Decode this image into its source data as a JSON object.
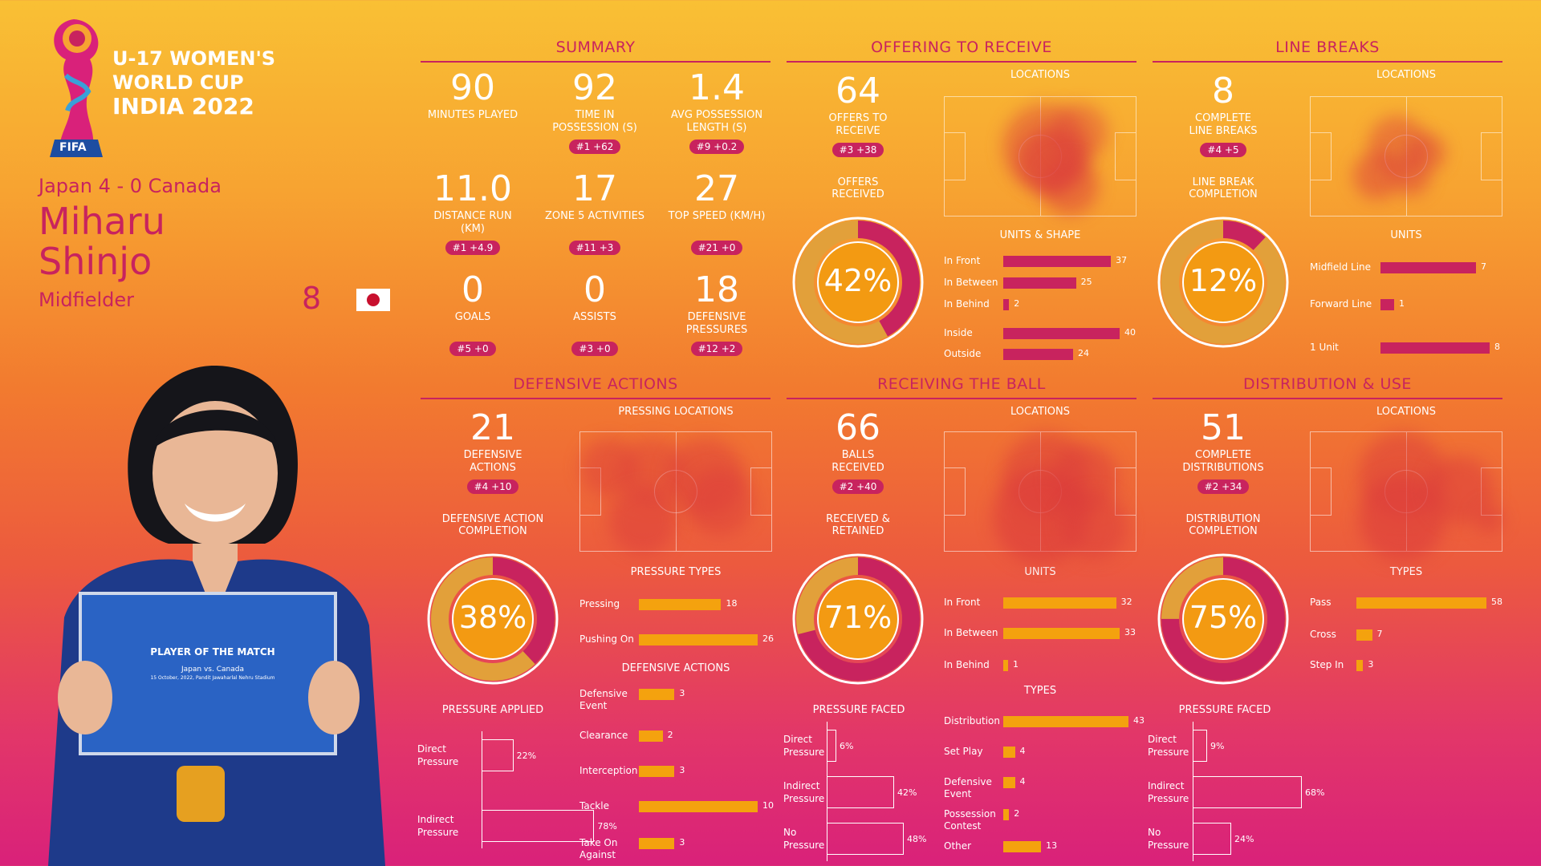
{
  "tournament": {
    "line1": "U-17 WOMEN'S",
    "line2": "WORLD CUP",
    "line3": "INDIA 2022",
    "fifa": "FIFA"
  },
  "match": "Japan 4 - 0 Canada",
  "player": {
    "first": "Miharu",
    "last": "Shinjo",
    "position": "Midfielder",
    "number": "8"
  },
  "photo": {
    "board_title": "PLAYER OF THE MATCH",
    "board_match": "Japan vs. Canada",
    "board_date": "15 October, 2022, Pandit Jawaharlal Nehru Stadium"
  },
  "sections": {
    "summary": "SUMMARY",
    "offering": "OFFERING TO RECEIVE",
    "linebreaks": "LINE BREAKS",
    "defensive": "DEFENSIVE ACTIONS",
    "receiving": "RECEIVING THE BALL",
    "distribution": "DISTRIBUTION & USE"
  },
  "summary": [
    {
      "value": "90",
      "label": "MINUTES PLAYED",
      "rank": ""
    },
    {
      "value": "92",
      "label": "TIME IN POSSESSION (s)",
      "rank": "#1 +62"
    },
    {
      "value": "1.4",
      "label": "AVG POSSESSION LENGTH (s)",
      "rank": "#9 +0.2"
    },
    {
      "value": "11.0",
      "label": "DISTANCE RUN (KM)",
      "rank": "#1 +4.9"
    },
    {
      "value": "17",
      "label": "ZONE 5 ACTIVITIES",
      "rank": "#11 +3"
    },
    {
      "value": "27",
      "label": "TOP SPEED (KM/H)",
      "rank": "#21 +0"
    },
    {
      "value": "0",
      "label": "GOALS",
      "rank": "#5 +0"
    },
    {
      "value": "0",
      "label": "ASSISTS",
      "rank": "#3 +0"
    },
    {
      "value": "18",
      "label": "DEFENSIVE PRESSURES",
      "rank": "#12 +2"
    }
  ],
  "offering": {
    "value": "64",
    "label": "OFFERS TO RECEIVE",
    "rank": "#3 +38",
    "sub": "OFFERS RECEIVED",
    "pct": "42%",
    "pct_value": 42,
    "locations": "LOCATIONS",
    "units_title": "UNITS & SHAPE"
  },
  "linebreaks": {
    "value": "8",
    "label": "COMPLETE LINE BREAKS",
    "rank": "#4 +5",
    "sub": "LINE BREAK COMPLETION",
    "pct": "12%",
    "pct_value": 12,
    "locations": "LOCATIONS",
    "units_title": "UNITS"
  },
  "defensive": {
    "value": "21",
    "label": "DEFENSIVE ACTIONS",
    "rank": "#4 +10",
    "sub": "DEFENSIVE ACTION COMPLETION",
    "pct": "38%",
    "pct_value": 38,
    "locations": "PRESSING LOCATIONS",
    "types_title": "PRESSURE TYPES",
    "actions_title": "DEFENSIVE ACTIONS",
    "applied_title": "PRESSURE APPLIED"
  },
  "receiving": {
    "value": "66",
    "label": "BALLS RECEIVED",
    "rank": "#2 +40",
    "sub": "RECEIVED & RETAINED",
    "pct": "71%",
    "pct_value": 71,
    "locations": "LOCATIONS",
    "units_title": "UNITS",
    "types_title": "TYPES",
    "faced_title": "PRESSURE FACED"
  },
  "distribution": {
    "value": "51",
    "label": "COMPLETE DISTRIBUTIONS",
    "rank": "#2 +34",
    "sub": "DISTRIBUTION COMPLETION",
    "pct": "75%",
    "pct_value": 75,
    "locations": "LOCATIONS",
    "types_title": "TYPES",
    "faced_title": "PRESSURE FACED"
  },
  "colors": {
    "magenta": "#c8235e",
    "amber": "#f4a20e",
    "ring": "#e2a03a"
  },
  "chart_data": [
    {
      "type": "bar",
      "title": "UNITS & SHAPE",
      "categories": [
        "In Front",
        "In Between",
        "In Behind",
        "Inside",
        "Outside"
      ],
      "values": [
        37,
        25,
        2,
        40,
        24
      ]
    },
    {
      "type": "bar",
      "title": "UNITS",
      "categories": [
        "Midfield Line",
        "Forward Line",
        "1 Unit"
      ],
      "values": [
        7,
        1,
        8
      ]
    },
    {
      "type": "bar",
      "title": "PRESSURE TYPES",
      "categories": [
        "Pressing",
        "Pushing On"
      ],
      "values": [
        18,
        26
      ]
    },
    {
      "type": "bar",
      "title": "DEFENSIVE ACTIONS",
      "categories": [
        "Defensive Event",
        "Clearance",
        "Interception",
        "Tackle",
        "Take On Against"
      ],
      "values": [
        3,
        2,
        3,
        10,
        3
      ]
    },
    {
      "type": "bar",
      "title": "PRESSURE APPLIED",
      "categories": [
        "Direct Pressure",
        "Indirect Pressure"
      ],
      "values": [
        22,
        78
      ],
      "unit": "%"
    },
    {
      "type": "bar",
      "title": "UNITS",
      "categories": [
        "In Front",
        "In Between",
        "In Behind"
      ],
      "values": [
        32,
        33,
        1
      ]
    },
    {
      "type": "bar",
      "title": "TYPES",
      "categories": [
        "Distribution",
        "Set Play",
        "Defensive Event",
        "Possession Contest",
        "Other"
      ],
      "values": [
        43,
        4,
        4,
        2,
        13
      ]
    },
    {
      "type": "bar",
      "title": "PRESSURE FACED",
      "categories": [
        "Direct Pressure",
        "Indirect Pressure",
        "No Pressure"
      ],
      "values": [
        6,
        42,
        48
      ],
      "unit": "%"
    },
    {
      "type": "bar",
      "title": "TYPES",
      "categories": [
        "Pass",
        "Cross",
        "Step In"
      ],
      "values": [
        58,
        7,
        3
      ]
    },
    {
      "type": "bar",
      "title": "PRESSURE FACED",
      "categories": [
        "Direct Pressure",
        "Indirect Pressure",
        "No Pressure"
      ],
      "values": [
        9,
        68,
        24
      ],
      "unit": "%"
    },
    {
      "type": "pie",
      "title": "OFFERS RECEIVED",
      "categories": [
        "received",
        "other"
      ],
      "values": [
        42,
        58
      ]
    },
    {
      "type": "pie",
      "title": "LINE BREAK COMPLETION",
      "categories": [
        "completed",
        "other"
      ],
      "values": [
        12,
        88
      ]
    },
    {
      "type": "pie",
      "title": "DEFENSIVE ACTION COMPLETION",
      "categories": [
        "completed",
        "other"
      ],
      "values": [
        38,
        62
      ]
    },
    {
      "type": "pie",
      "title": "RECEIVED & RETAINED",
      "categories": [
        "retained",
        "other"
      ],
      "values": [
        71,
        29
      ]
    },
    {
      "type": "pie",
      "title": "DISTRIBUTION COMPLETION",
      "categories": [
        "completed",
        "other"
      ],
      "values": [
        75,
        25
      ]
    }
  ]
}
